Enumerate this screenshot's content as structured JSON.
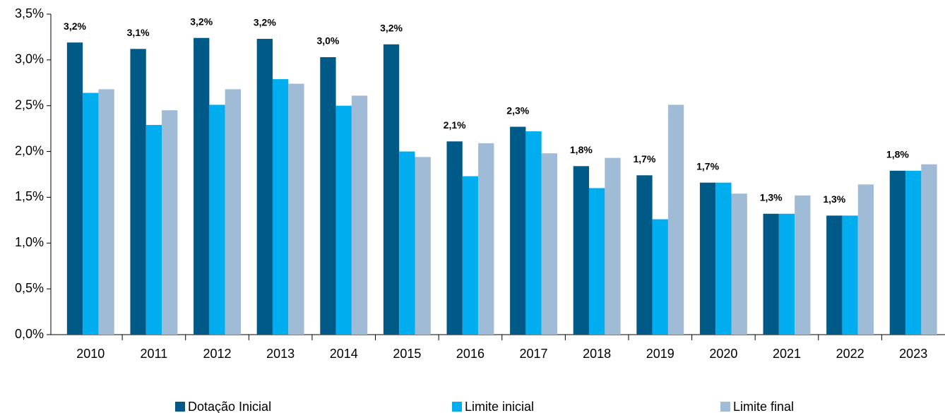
{
  "chart_data": {
    "type": "bar",
    "categories": [
      "2010",
      "2011",
      "2012",
      "2013",
      "2014",
      "2015",
      "2016",
      "2017",
      "2018",
      "2019",
      "2020",
      "2021",
      "2022",
      "2023"
    ],
    "series": [
      {
        "name": "Dotação Inicial",
        "color": "#005a87",
        "values": [
          3.19,
          3.12,
          3.24,
          3.23,
          3.03,
          3.17,
          2.11,
          2.27,
          1.84,
          1.74,
          1.66,
          1.32,
          1.3,
          1.79
        ],
        "value_labels": [
          "3,2%",
          "3,1%",
          "3,2%",
          "3,2%",
          "3,0%",
          "3,2%",
          "2,1%",
          "2,3%",
          "1,8%",
          "1,7%",
          "1,7%",
          "1,3%",
          "1,3%",
          "1,8%"
        ]
      },
      {
        "name": "Limite inicial",
        "color": "#00aeef",
        "values": [
          2.64,
          2.29,
          2.51,
          2.79,
          2.5,
          2.0,
          1.73,
          2.22,
          1.6,
          1.26,
          1.66,
          1.32,
          1.3,
          1.79
        ]
      },
      {
        "name": "Limite final",
        "color": "#9fbbd6",
        "values": [
          2.68,
          2.45,
          2.68,
          2.74,
          2.61,
          1.94,
          2.09,
          1.98,
          1.93,
          2.51,
          1.54,
          1.52,
          1.64,
          1.86
        ]
      }
    ],
    "ylim": [
      0,
      3.5
    ],
    "yticks": [
      {
        "value": 0,
        "label": "0,0%"
      },
      {
        "value": 0.5,
        "label": "0,5%"
      },
      {
        "value": 1,
        "label": "1,0%"
      },
      {
        "value": 1.5,
        "label": "1,5%"
      },
      {
        "value": 2,
        "label": "2,0%"
      },
      {
        "value": 2.5,
        "label": "2,5%"
      },
      {
        "value": 3,
        "label": "3,0%"
      },
      {
        "value": 3.5,
        "label": "3,5%"
      }
    ],
    "legend": "bottom"
  }
}
